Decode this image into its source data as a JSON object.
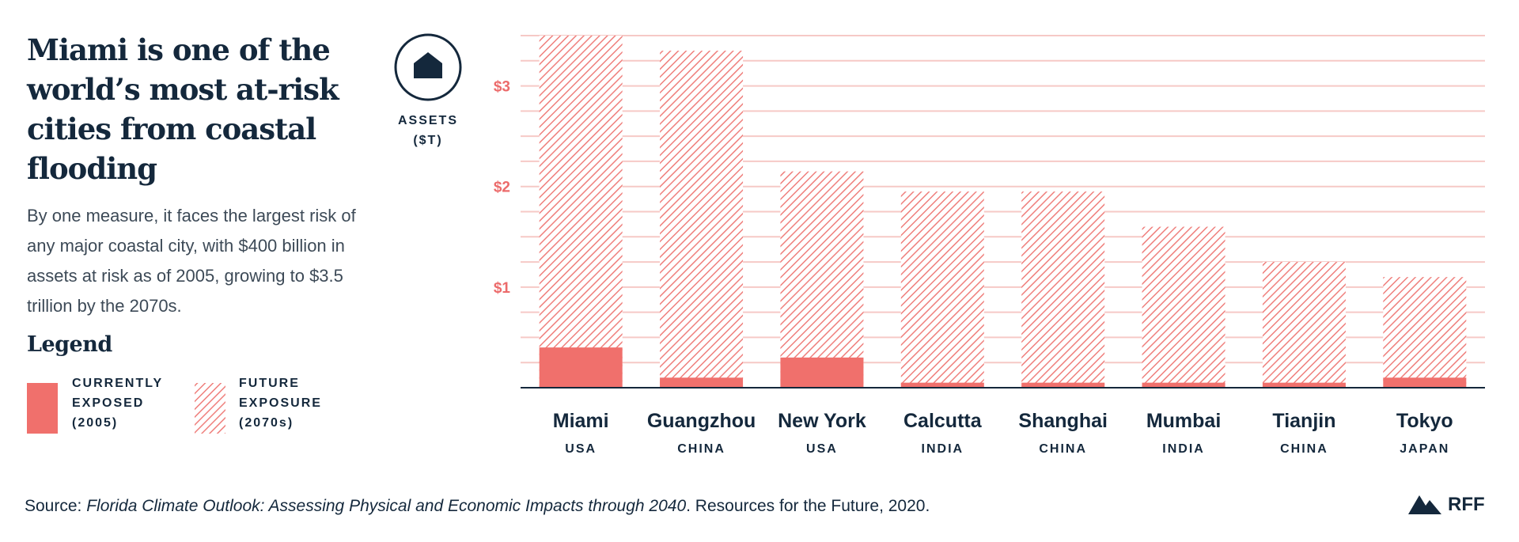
{
  "title": "Miami is one of the world’s most at-risk cities from coastal flooding",
  "description": "By one measure, it faces the largest risk of any major coastal city, with $400 billion in assets at risk as of 2005, growing to $3.5 trillion by the 2070s.",
  "legend_title": "Legend",
  "source": {
    "label": "Source:",
    "title": "Florida Climate Outlook: Assessing Physical and Economic Impacts through 2040",
    "rest": ". Resources for the Future, 2020."
  },
  "logo": "RFF",
  "chart_data": {
    "type": "bar",
    "axis_label": "ASSETS ($T)",
    "categories": [
      "Miami",
      "Guangzhou",
      "New York",
      "Calcutta",
      "Shanghai",
      "Mumbai",
      "Tianjin",
      "Tokyo"
    ],
    "countries": [
      "USA",
      "CHINA",
      "USA",
      "INDIA",
      "CHINA",
      "INDIA",
      "CHINA",
      "JAPAN"
    ],
    "series": [
      {
        "name": "FUTURE EXPOSURE (2070s)",
        "color": "#ef7f7c",
        "pattern": "hatch",
        "values": [
          3.5,
          3.35,
          2.15,
          1.95,
          1.95,
          1.6,
          1.25,
          1.1
        ]
      },
      {
        "name": "CURRENTLY EXPOSED (2005)",
        "color": "#f0706c",
        "pattern": "solid",
        "values": [
          0.4,
          0.1,
          0.3,
          0.05,
          0.05,
          0.05,
          0.05,
          0.1
        ]
      }
    ],
    "ylim": [
      0,
      3.5
    ],
    "yticks": [
      {
        "value": 1,
        "label": "$1"
      },
      {
        "value": 2,
        "label": "$2"
      },
      {
        "value": 3,
        "label": "$3"
      }
    ],
    "grid_lines": [
      0.25,
      0.5,
      0.75,
      1,
      1.25,
      1.5,
      1.75,
      2,
      2.25,
      2.5,
      2.75,
      3,
      3.25,
      3.5
    ],
    "grid_color": "#f6c9c6"
  }
}
